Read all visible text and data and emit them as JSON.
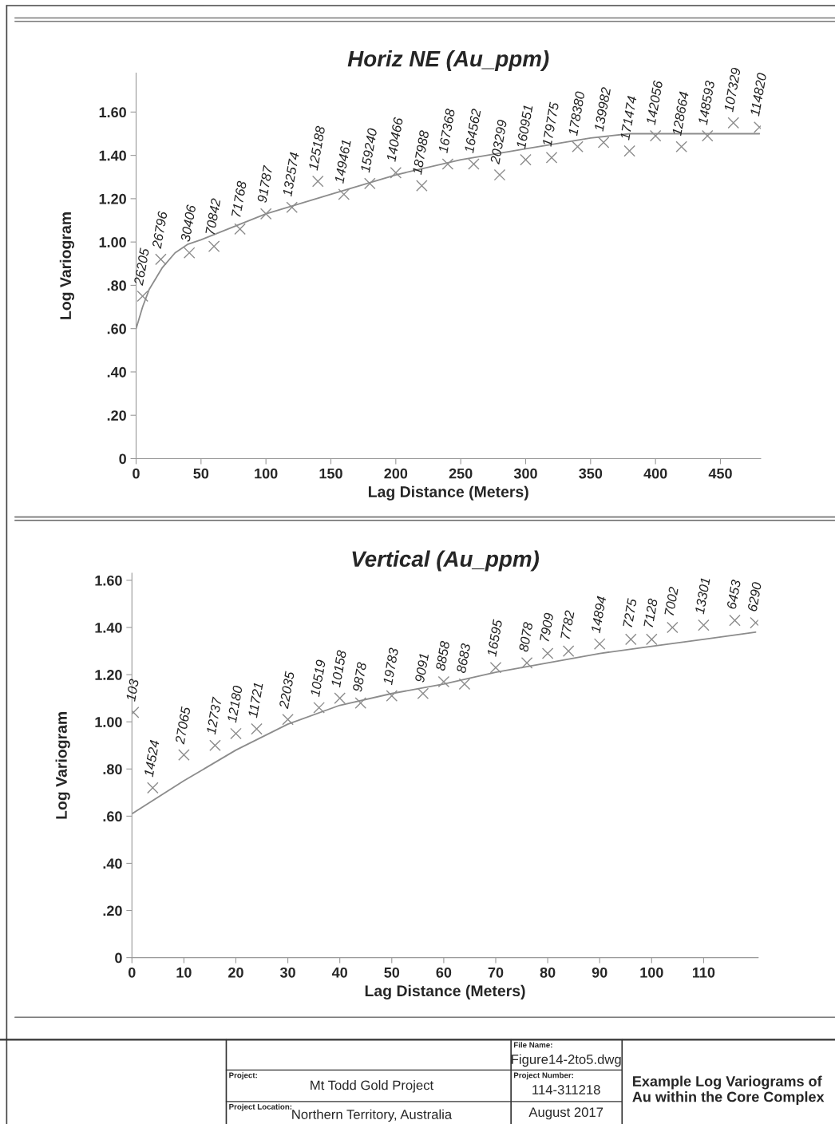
{
  "chart_data": [
    {
      "type": "scatter",
      "title": "Horiz NE (Au_ppm)",
      "xlabel": "Lag Distance (Meters)",
      "ylabel": "Log Variogram",
      "xlim": [
        0,
        481
      ],
      "ylim": [
        0,
        1.78
      ],
      "xticks": [
        0,
        50,
        100,
        150,
        200,
        250,
        300,
        350,
        400,
        450
      ],
      "yticks": [
        {
          "value": 0,
          "label": "0"
        },
        {
          "value": 0.2,
          "label": ".20"
        },
        {
          "value": 0.4,
          "label": ".40"
        },
        {
          "value": 0.6,
          "label": ".60"
        },
        {
          "value": 0.8,
          "label": ".80"
        },
        {
          "value": 1.0,
          "label": "1.00"
        },
        {
          "value": 1.2,
          "label": "1.20"
        },
        {
          "value": 1.4,
          "label": "1.40"
        },
        {
          "value": 1.6,
          "label": "1.60"
        }
      ],
      "grid": false,
      "legend": false,
      "series": [
        {
          "type": "scatter",
          "marker": "cross",
          "color": "#8c8c8c",
          "x": [
            5,
            19,
            41,
            60,
            80,
            100,
            120,
            140,
            160,
            180,
            200,
            220,
            240,
            260,
            280,
            300,
            320,
            340,
            360,
            380,
            400,
            420,
            440,
            460,
            480
          ],
          "values": [
            0.75,
            0.92,
            0.95,
            0.98,
            1.06,
            1.13,
            1.16,
            1.28,
            1.22,
            1.27,
            1.32,
            1.26,
            1.36,
            1.36,
            1.31,
            1.38,
            1.39,
            1.44,
            1.46,
            1.42,
            1.49,
            1.44,
            1.49,
            1.55,
            1.53
          ]
        },
        {
          "type": "line",
          "marker": "none",
          "line_style": "solid",
          "color": "#8c8c8c",
          "x": [
            0,
            5,
            10,
            20,
            30,
            40,
            50,
            100,
            150,
            200,
            250,
            300,
            350,
            380,
            480
          ],
          "values": [
            0.6,
            0.7,
            0.78,
            0.88,
            0.95,
            0.99,
            1.01,
            1.13,
            1.22,
            1.31,
            1.38,
            1.43,
            1.48,
            1.5,
            1.5
          ]
        }
      ],
      "annotations": [
        {
          "text": "26205",
          "x": 5,
          "y": 0.75
        },
        {
          "text": "26796",
          "x": 19,
          "y": 0.92
        },
        {
          "text": "30406",
          "x": 41,
          "y": 0.95
        },
        {
          "text": "70842",
          "x": 60,
          "y": 0.98
        },
        {
          "text": "71768",
          "x": 80,
          "y": 1.06
        },
        {
          "text": "91787",
          "x": 100,
          "y": 1.13
        },
        {
          "text": "132574",
          "x": 120,
          "y": 1.16
        },
        {
          "text": "125188",
          "x": 140,
          "y": 1.28
        },
        {
          "text": "149461",
          "x": 160,
          "y": 1.22
        },
        {
          "text": "159240",
          "x": 180,
          "y": 1.27
        },
        {
          "text": "140466",
          "x": 200,
          "y": 1.32
        },
        {
          "text": "187988",
          "x": 220,
          "y": 1.26
        },
        {
          "text": "167368",
          "x": 240,
          "y": 1.36
        },
        {
          "text": "164562",
          "x": 260,
          "y": 1.36
        },
        {
          "text": "203299",
          "x": 280,
          "y": 1.31
        },
        {
          "text": "160951",
          "x": 300,
          "y": 1.38
        },
        {
          "text": "179775",
          "x": 320,
          "y": 1.39
        },
        {
          "text": "178380",
          "x": 340,
          "y": 1.44
        },
        {
          "text": "139982",
          "x": 360,
          "y": 1.46
        },
        {
          "text": "171474",
          "x": 380,
          "y": 1.42
        },
        {
          "text": "142056",
          "x": 400,
          "y": 1.49
        },
        {
          "text": "128664",
          "x": 420,
          "y": 1.44
        },
        {
          "text": "148593",
          "x": 440,
          "y": 1.49
        },
        {
          "text": "107329",
          "x": 460,
          "y": 1.55
        },
        {
          "text": "114820",
          "x": 480,
          "y": 1.53
        }
      ]
    },
    {
      "type": "scatter",
      "title": "Vertical (Au_ppm)",
      "xlabel": "Lag Distance (Meters)",
      "ylabel": "Log Variogram",
      "xlim": [
        0,
        120.5
      ],
      "ylim": [
        0,
        1.63
      ],
      "xticks": [
        0,
        10,
        20,
        30,
        40,
        50,
        60,
        70,
        80,
        90,
        100,
        110
      ],
      "yticks": [
        {
          "value": 0,
          "label": "0"
        },
        {
          "value": 0.2,
          "label": ".20"
        },
        {
          "value": 0.4,
          "label": ".40"
        },
        {
          "value": 0.6,
          "label": ".60"
        },
        {
          "value": 0.8,
          "label": ".80"
        },
        {
          "value": 1.0,
          "label": "1.00"
        },
        {
          "value": 1.2,
          "label": "1.20"
        },
        {
          "value": 1.4,
          "label": "1.40"
        },
        {
          "value": 1.6,
          "label": "1.60"
        }
      ],
      "grid": false,
      "legend": false,
      "series": [
        {
          "type": "scatter",
          "marker": "cross",
          "color": "#8c8c8c",
          "x": [
            0.3,
            4,
            10,
            16,
            20,
            24,
            30,
            36,
            40,
            44,
            50,
            56,
            60,
            64,
            70,
            76,
            80,
            84,
            90,
            96,
            100,
            104,
            110,
            116,
            120
          ],
          "values": [
            1.04,
            0.72,
            0.86,
            0.9,
            0.95,
            0.97,
            1.01,
            1.06,
            1.1,
            1.08,
            1.11,
            1.12,
            1.17,
            1.16,
            1.23,
            1.25,
            1.29,
            1.3,
            1.33,
            1.35,
            1.35,
            1.4,
            1.41,
            1.43,
            1.42
          ]
        },
        {
          "type": "line",
          "marker": "none",
          "line_style": "solid",
          "color": "#8c8c8c",
          "x": [
            0,
            10,
            20,
            30,
            40,
            50,
            60,
            70,
            80,
            90,
            100,
            110,
            120
          ],
          "values": [
            0.61,
            0.75,
            0.88,
            0.99,
            1.07,
            1.12,
            1.16,
            1.21,
            1.25,
            1.29,
            1.32,
            1.35,
            1.38
          ]
        }
      ],
      "annotations": [
        {
          "text": "103",
          "x": 0.3,
          "y": 1.04
        },
        {
          "text": "14524",
          "x": 4,
          "y": 0.72
        },
        {
          "text": "27065",
          "x": 10,
          "y": 0.86
        },
        {
          "text": "12737",
          "x": 16,
          "y": 0.9
        },
        {
          "text": "12180",
          "x": 20,
          "y": 0.95
        },
        {
          "text": "11721",
          "x": 24,
          "y": 0.97
        },
        {
          "text": "22035",
          "x": 30,
          "y": 1.01
        },
        {
          "text": "10519",
          "x": 36,
          "y": 1.06
        },
        {
          "text": "10158",
          "x": 40,
          "y": 1.1
        },
        {
          "text": "9878",
          "x": 44,
          "y": 1.08
        },
        {
          "text": "19783",
          "x": 50,
          "y": 1.11
        },
        {
          "text": "9091",
          "x": 56,
          "y": 1.12
        },
        {
          "text": "8858",
          "x": 60,
          "y": 1.17
        },
        {
          "text": "8683",
          "x": 64,
          "y": 1.16
        },
        {
          "text": "16595",
          "x": 70,
          "y": 1.23
        },
        {
          "text": "8078",
          "x": 76,
          "y": 1.25
        },
        {
          "text": "7909",
          "x": 80,
          "y": 1.29
        },
        {
          "text": "7782",
          "x": 84,
          "y": 1.3
        },
        {
          "text": "14894",
          "x": 90,
          "y": 1.33
        },
        {
          "text": "7275",
          "x": 96,
          "y": 1.35
        },
        {
          "text": "7128",
          "x": 100,
          "y": 1.35
        },
        {
          "text": "7002",
          "x": 104,
          "y": 1.4
        },
        {
          "text": "13301",
          "x": 110,
          "y": 1.41
        },
        {
          "text": "6453",
          "x": 116,
          "y": 1.43
        },
        {
          "text": "6290",
          "x": 120,
          "y": 1.42
        },
        "Project:",
        "Mt Todd Gold Project",
        "Project Location:",
        "Northern Territory, Australia",
        "File Name:",
        "Figure14-2to5.dwg",
        "Project Number:",
        "114-311218",
        "August 2017",
        "Example Log Variograms of Au within the Core Complex"
      ]
    }
  ]
}
